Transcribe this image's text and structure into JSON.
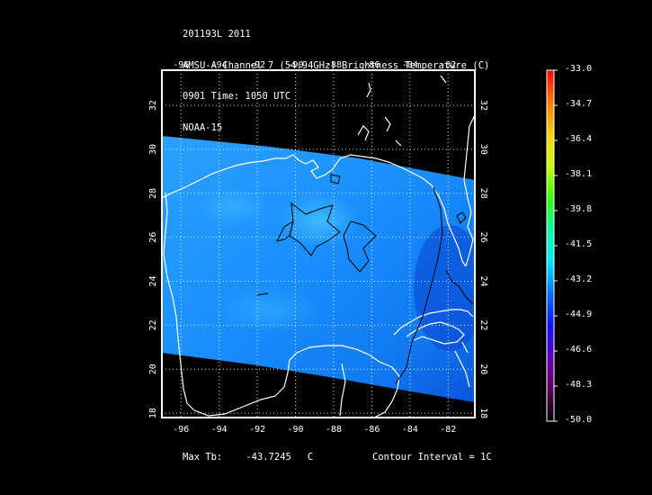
{
  "header": {
    "line1": "201193L 2011",
    "line2": "AMSU-A Channel 7 (54.94GHz) Brightness Temperature (C)",
    "line3": "0901 Time: 1050 UTC",
    "line4": "NOAA-15"
  },
  "map": {
    "lon_ticks": [
      "-96",
      "-94",
      "-92",
      "-90",
      "-88",
      "-86",
      "-84",
      "-82"
    ],
    "lat_ticks": [
      "18",
      "20",
      "22",
      "24",
      "26",
      "28",
      "30",
      "32"
    ],
    "lon_range": [
      -97,
      -80.6
    ],
    "lat_range": [
      17.8,
      33.6
    ],
    "grid": "dotted",
    "swath_color": "#1e8cff",
    "contour_color": "#000000",
    "coastline_color": "#ffffff"
  },
  "colorbar": {
    "labels": [
      "-33.0",
      "-34.7",
      "-36.4",
      "-38.1",
      "-39.8",
      "-41.5",
      "-43.2",
      "-44.9",
      "-46.6",
      "-48.3",
      "-50.0"
    ],
    "colors": [
      "#ff0000",
      "#ff7a00",
      "#ffd000",
      "#c8ff00",
      "#38ff00",
      "#00ffa0",
      "#00e8ff",
      "#0070ff",
      "#1010ff",
      "#6000c0",
      "#60005a",
      "#000000"
    ]
  },
  "footer": {
    "max_label": "Max Tb:",
    "max_value": "-43.7245",
    "max_unit": "C",
    "contour_text": "Contour Interval = 1C"
  }
}
